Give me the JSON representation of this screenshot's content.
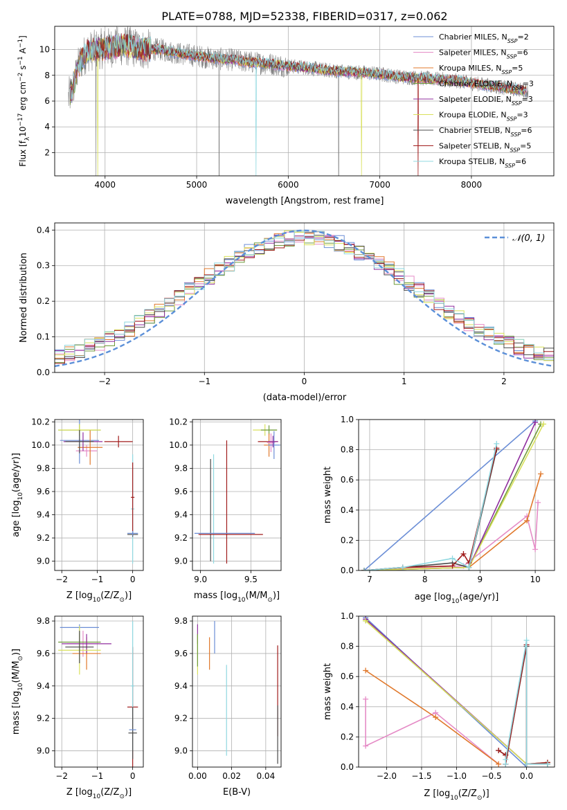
{
  "figure": {
    "title": "PLATE=0788, MJD=52338, FIBERID=0317, z=0.062",
    "model_colors": {
      "Chabrier MILES": "#6b8ed6",
      "Salpeter MILES": "#e58bc6",
      "Kroupa MILES": "#e0782b",
      "Chabrier ELODIE": "#6e9a3a",
      "Salpeter ELODIE": "#8f2d9e",
      "Kroupa ELODIE": "#d8e05a",
      "Chabrier STELIB": "#4a4a4a",
      "Salpeter STELIB": "#a01b1b",
      "Kroupa STELIB": "#8fd8e0"
    }
  },
  "chart_data": [
    {
      "id": "spectrum",
      "type": "line",
      "title": "PLATE=0788, MJD=52338, FIBERID=0317, z=0.062",
      "xlabel": "wavelength [Angstrom, rest frame]",
      "ylabel_parts": [
        "Flux [f",
        "λ",
        "10",
        "−17",
        " erg cm",
        "−2",
        " s",
        "−1",
        " A",
        "−1",
        "]"
      ],
      "xlim": [
        3450,
        8900
      ],
      "ylim": [
        0.2,
        11.8
      ],
      "xticks": [
        4000,
        5000,
        6000,
        7000,
        8000
      ],
      "yticks": [
        2,
        4,
        6,
        8,
        10
      ],
      "data_color": "#808080",
      "continuum_x": [
        3600,
        3650,
        3700,
        3750,
        3800,
        3900,
        4000,
        4100,
        4200,
        4300,
        4400,
        4600,
        4800,
        5000,
        5200,
        5400,
        5600,
        5800,
        6000,
        6200,
        6400,
        6600,
        6800,
        7000,
        7200,
        7400,
        7600,
        7800,
        8000,
        8200,
        8400,
        8600
      ],
      "continuum_y": [
        6.2,
        7.0,
        8.5,
        9.3,
        9.8,
        10.0,
        10.1,
        10.2,
        10.3,
        10.2,
        10.0,
        10.0,
        9.7,
        9.5,
        9.3,
        9.2,
        9.0,
        8.9,
        8.7,
        8.6,
        8.4,
        8.3,
        8.2,
        8.1,
        7.9,
        7.8,
        7.7,
        7.6,
        7.4,
        7.2,
        7.0,
        6.8
      ],
      "model_names": [
        "Chabrier MILES",
        "Salpeter MILES",
        "Kroupa MILES",
        "Chabrier ELODIE",
        "Salpeter ELODIE",
        "Kroupa ELODIE",
        "Chabrier STELIB",
        "Salpeter STELIB",
        "Kroupa STELIB"
      ],
      "model_nssp": [
        "2",
        "6",
        "5",
        "3",
        "3",
        "3",
        "6",
        "5",
        "6"
      ]
    },
    {
      "id": "residuals",
      "type": "line",
      "xlabel": "(data-model)/error",
      "ylabel": "Normed distribution",
      "xlim": [
        -2.5,
        2.5
      ],
      "ylim": [
        0,
        0.42
      ],
      "xticks": [
        -2,
        -1,
        0,
        1,
        2
      ],
      "xtick_labels": [
        "−2",
        "−1",
        "0",
        "1",
        "2"
      ],
      "yticks": [
        0.0,
        0.1,
        0.2,
        0.3,
        0.4
      ],
      "ytick_labels": [
        "0.0",
        "0.1",
        "0.2",
        "0.3",
        "0.4"
      ],
      "bin_width": 0.1,
      "legend_label": "𝒩(0, 1)",
      "gaussian_color": "#5b8fd8"
    },
    {
      "id": "age-vs-Z",
      "type": "scatter",
      "xlabel_parts": [
        "Z [log",
        "10",
        "(Z/Z",
        "⊙",
        ")]"
      ],
      "ylabel_parts": [
        "age  [log",
        "10",
        "(age/yr)]"
      ],
      "xlim": [
        -2.2,
        0.3
      ],
      "ylim": [
        8.92,
        10.22
      ],
      "xticks": [
        -2,
        -1,
        0
      ],
      "xtick_labels": [
        "−2",
        "−1",
        "0"
      ],
      "yticks": [
        9.0,
        9.2,
        9.4,
        9.6,
        9.8,
        10.0,
        10.2
      ],
      "ytick_labels": [
        "9.0",
        "9.2",
        "9.4",
        "9.6",
        "9.8",
        "10.0",
        "10.2"
      ],
      "points": [
        {
          "model": "Chabrier MILES",
          "x": -1.5,
          "xerr": 0.55,
          "y": 10.04,
          "yerr": 0.2
        },
        {
          "model": "Salpeter MILES",
          "x": -1.3,
          "xerr": 0.3,
          "y": 9.95,
          "yerr": 0.05
        },
        {
          "model": "Kroupa MILES",
          "x": -1.2,
          "xerr": 0.35,
          "y": 9.98,
          "yerr": 0.15
        },
        {
          "model": "Chabrier ELODIE",
          "x": -1.5,
          "xerr": 0.6,
          "y": 10.13,
          "yerr": 0.05
        },
        {
          "model": "Salpeter ELODIE",
          "x": -1.4,
          "xerr": 0.55,
          "y": 10.03,
          "yerr": 0.08
        },
        {
          "model": "Kroupa ELODIE",
          "x": -1.5,
          "xerr": 0.6,
          "y": 10.13,
          "yerr": 0.05
        },
        {
          "model": "Chabrier STELIB",
          "x": -1.5,
          "xerr": 0.4,
          "y": 10.03,
          "yerr": 0.1
        },
        {
          "model": "Salpeter STELIB",
          "x": -0.4,
          "xerr": 0.4,
          "y": 10.03,
          "yerr": 0.05
        },
        {
          "model": "Kroupa STELIB",
          "x": 0.0,
          "xerr": 0.05,
          "y": 9.45,
          "yerr": 0.47
        },
        {
          "model": "Chabrier STELIB",
          "x": 0.0,
          "xerr": 0.15,
          "y": 9.23,
          "yerr": 0.02
        },
        {
          "model": "Salpeter STELIB",
          "x": 0.0,
          "xerr": 0.05,
          "y": 9.55,
          "yerr": 0.3
        },
        {
          "model": "Chabrier MILES",
          "x": 0.0,
          "xerr": 0.15,
          "y": 9.24,
          "yerr": 0.02
        }
      ]
    },
    {
      "id": "age-vs-mass",
      "type": "scatter",
      "xlabel_parts": [
        "mass [log",
        "10",
        "(M/M",
        "⊙",
        ")]"
      ],
      "ylabel_parts": [],
      "xlim": [
        8.92,
        9.8
      ],
      "ylim": [
        8.92,
        10.22
      ],
      "xticks": [
        9.0,
        9.5
      ],
      "xtick_labels": [
        "9.0",
        "9.5"
      ],
      "yticks": [
        9.0,
        9.2,
        9.4,
        9.6,
        9.8,
        10.0,
        10.2
      ],
      "ytick_labels": [
        "9.0",
        "9.2",
        "9.4",
        "9.6",
        "9.8",
        "10.0",
        "10.2"
      ],
      "points": [
        {
          "model": "Chabrier STELIB",
          "x": 9.1,
          "xerr": 0.0,
          "y": 9.44,
          "yerr": 0.44
        },
        {
          "model": "Kroupa STELIB",
          "x": 9.13,
          "xerr": 0.0,
          "y": 9.45,
          "yerr": 0.47
        },
        {
          "model": "Salpeter STELIB",
          "x": 9.26,
          "xerr": 0.0,
          "y": 9.51,
          "yerr": 0.53
        },
        {
          "model": "Chabrier MILES",
          "x": 9.24,
          "xerr": 0.3,
          "y": 9.24,
          "yerr": 0.0
        },
        {
          "model": "Salpeter STELIB",
          "x": 9.3,
          "xerr": 0.32,
          "y": 9.23,
          "yerr": 0.0
        },
        {
          "model": "Kroupa ELODIE",
          "x": 9.64,
          "xerr": 0.12,
          "y": 10.13,
          "yerr": 0.05
        },
        {
          "model": "Chabrier ELODIE",
          "x": 9.68,
          "xerr": 0.08,
          "y": 10.13,
          "yerr": 0.04
        },
        {
          "model": "Kroupa MILES",
          "x": 9.68,
          "xerr": 0.05,
          "y": 10.0,
          "yerr": 0.1
        },
        {
          "model": "Salpeter MILES",
          "x": 9.7,
          "xerr": 0.04,
          "y": 10.02,
          "yerr": 0.08
        },
        {
          "model": "Chabrier MILES",
          "x": 9.73,
          "xerr": 0.06,
          "y": 10.0,
          "yerr": 0.12
        },
        {
          "model": "Salpeter STELIB",
          "x": 9.67,
          "xerr": 0.1,
          "y": 10.03,
          "yerr": 0.0
        },
        {
          "model": "Salpeter ELODIE",
          "x": 9.72,
          "xerr": 0.05,
          "y": 10.03,
          "yerr": 0.05
        }
      ]
    },
    {
      "id": "mass-weight-vs-age",
      "type": "line",
      "xlabel_parts": [
        "age  [log",
        "10",
        "(age/yr)]"
      ],
      "ylabel": "mass weight",
      "xlim": [
        6.8,
        10.35
      ],
      "ylim": [
        0,
        1
      ],
      "xticks": [
        7,
        8,
        9,
        10
      ],
      "xtick_labels": [
        "7",
        "8",
        "9",
        "10"
      ],
      "yticks": [
        0.0,
        0.2,
        0.4,
        0.6,
        0.8,
        1.0
      ],
      "ytick_labels": [
        "0.0",
        "0.2",
        "0.4",
        "0.6",
        "0.8",
        "1.0"
      ],
      "series": [
        {
          "model": "Chabrier MILES",
          "x": [
            6.9,
            10.0
          ],
          "y": [
            0.0,
            0.99
          ]
        },
        {
          "model": "Salpeter MILES",
          "x": [
            6.9,
            7.6,
            8.7,
            9.85,
            10.0,
            10.05
          ],
          "y": [
            0.0,
            0.02,
            0.03,
            0.36,
            0.14,
            0.45
          ]
        },
        {
          "model": "Kroupa MILES",
          "x": [
            6.9,
            7.6,
            8.8,
            9.85,
            10.1
          ],
          "y": [
            0.0,
            0.01,
            0.02,
            0.33,
            0.64
          ]
        },
        {
          "model": "Chabrier ELODIE",
          "x": [
            6.9,
            8.8,
            10.1
          ],
          "y": [
            0.0,
            0.02,
            0.97
          ]
        },
        {
          "model": "Salpeter ELODIE",
          "x": [
            6.9,
            8.8,
            10.0
          ],
          "y": [
            0.0,
            0.02,
            0.98
          ]
        },
        {
          "model": "Kroupa ELODIE",
          "x": [
            6.9,
            8.8,
            10.15
          ],
          "y": [
            0.0,
            0.02,
            0.97
          ]
        },
        {
          "model": "Chabrier STELIB",
          "x": [
            6.9,
            7.6,
            8.5,
            8.8,
            9.3
          ],
          "y": [
            0.0,
            0.02,
            0.05,
            0.02,
            0.8
          ]
        },
        {
          "model": "Salpeter STELIB",
          "x": [
            6.9,
            7.6,
            8.5,
            8.7,
            8.8,
            9.3
          ],
          "y": [
            0.0,
            0.02,
            0.03,
            0.11,
            0.05,
            0.81
          ]
        },
        {
          "model": "Kroupa STELIB",
          "x": [
            6.9,
            7.6,
            8.5,
            8.8,
            9.3
          ],
          "y": [
            0.0,
            0.02,
            0.08,
            0.02,
            0.84
          ]
        }
      ]
    },
    {
      "id": "mass-vs-Z",
      "type": "scatter",
      "xlabel_parts": [
        "Z [log",
        "10",
        "(Z/Z",
        "⊙",
        ")]"
      ],
      "ylabel_parts": [
        "mass [log",
        "10",
        "(M/M",
        "⊙",
        ")]"
      ],
      "xlim": [
        -2.2,
        0.3
      ],
      "ylim": [
        8.9,
        9.83
      ],
      "xticks": [
        -2,
        -1,
        0
      ],
      "xtick_labels": [
        "−2",
        "−1",
        "0"
      ],
      "yticks": [
        9.0,
        9.2,
        9.4,
        9.6,
        9.8
      ],
      "ytick_labels": [
        "9.0",
        "9.2",
        "9.4",
        "9.6",
        "9.8"
      ],
      "points": [
        {
          "model": "Chabrier MILES",
          "x": -1.5,
          "xerr": 0.55,
          "y": 9.76,
          "yerr": 0.02
        },
        {
          "model": "Salpeter MILES",
          "x": -1.4,
          "xerr": 0.45,
          "y": 9.66,
          "yerr": 0.08
        },
        {
          "model": "Kroupa MILES",
          "x": -1.3,
          "xerr": 0.4,
          "y": 9.6,
          "yerr": 0.1
        },
        {
          "model": "Chabrier ELODIE",
          "x": -1.5,
          "xerr": 0.6,
          "y": 9.67,
          "yerr": 0.06
        },
        {
          "model": "Salpeter ELODIE",
          "x": -1.3,
          "xerr": 0.7,
          "y": 9.66,
          "yerr": 0.06
        },
        {
          "model": "Kroupa ELODIE",
          "x": -1.5,
          "xerr": 0.6,
          "y": 9.62,
          "yerr": 0.15
        },
        {
          "model": "Chabrier STELIB",
          "x": -1.5,
          "xerr": 0.4,
          "y": 9.64,
          "yerr": 0.1
        },
        {
          "model": "Salpeter STELIB",
          "x": 0.0,
          "xerr": 0.15,
          "y": 9.27,
          "yerr": 0.37
        },
        {
          "model": "Kroupa STELIB",
          "x": 0.0,
          "xerr": 0.05,
          "y": 9.4,
          "yerr": 0.4
        },
        {
          "model": "Chabrier STELIB",
          "x": 0.0,
          "xerr": 0.12,
          "y": 9.11,
          "yerr": 0.16
        },
        {
          "model": "Chabrier MILES",
          "x": 0.0,
          "xerr": 0.1,
          "y": 9.13,
          "yerr": 0.0
        }
      ]
    },
    {
      "id": "mass-vs-ebv",
      "type": "scatter",
      "xlabel": "E(B-V)",
      "ylabel_parts": [],
      "xlim": [
        -0.003,
        0.049
      ],
      "ylim": [
        8.9,
        9.83
      ],
      "xticks": [
        0.0,
        0.02,
        0.04
      ],
      "xtick_labels": [
        "0.00",
        "0.02",
        "0.04"
      ],
      "yticks": [
        9.0,
        9.2,
        9.4,
        9.6,
        9.8
      ],
      "ytick_labels": [
        "9.0",
        "9.2",
        "9.4",
        "9.6",
        "9.8"
      ],
      "points": [
        {
          "model": "Salpeter ELODIE",
          "x": 0.0,
          "xerr": 0.0,
          "y": 9.72,
          "yerr": 0.06
        },
        {
          "model": "Kroupa ELODIE",
          "x": 0.0,
          "xerr": 0.0,
          "y": 9.59,
          "yerr": 0.12
        },
        {
          "model": "Chabrier ELODIE",
          "x": 0.0,
          "xerr": 0.0,
          "y": 9.62,
          "yerr": 0.1
        },
        {
          "model": "Kroupa MILES",
          "x": 0.007,
          "xerr": 0.0,
          "y": 9.6,
          "yerr": 0.1
        },
        {
          "model": "Chabrier MILES",
          "x": 0.01,
          "xerr": 0.0,
          "y": 9.7,
          "yerr": 0.1
        },
        {
          "model": "Kroupa STELIB",
          "x": 0.017,
          "xerr": 0.0,
          "y": 9.25,
          "yerr": 0.28
        },
        {
          "model": "Salpeter STELIB",
          "x": 0.047,
          "xerr": 0.0,
          "y": 9.37,
          "yerr": 0.28
        },
        {
          "model": "Chabrier STELIB",
          "x": 0.047,
          "xerr": 0.0,
          "y": 9.1,
          "yerr": 0.18
        }
      ]
    },
    {
      "id": "mass-weight-vs-Z",
      "type": "line",
      "xlabel_parts": [
        "Z [log",
        "10",
        "(Z/Z",
        "⊙",
        ")]"
      ],
      "ylabel": "mass weight",
      "xlim": [
        -2.4,
        0.4
      ],
      "ylim": [
        0,
        1
      ],
      "xticks": [
        -2.0,
        -1.5,
        -1.0,
        -0.5,
        0.0
      ],
      "xtick_labels": [
        "−2.0",
        "−1.5",
        "−1.0",
        "−0.5",
        "0.0"
      ],
      "yticks": [
        0.0,
        0.2,
        0.4,
        0.6,
        0.8,
        1.0
      ],
      "ytick_labels": [
        "0.0",
        "0.2",
        "0.4",
        "0.6",
        "0.8",
        "1.0"
      ],
      "series": [
        {
          "model": "Chabrier MILES",
          "x": [
            -2.3,
            0.0
          ],
          "y": [
            0.99,
            0.0
          ]
        },
        {
          "model": "Salpeter MILES",
          "x": [
            -2.3,
            -2.3,
            -1.3,
            -0.4
          ],
          "y": [
            0.45,
            0.14,
            0.36,
            0.02
          ]
        },
        {
          "model": "Kroupa MILES",
          "x": [
            -2.3,
            -1.3,
            -0.4
          ],
          "y": [
            0.64,
            0.33,
            0.02
          ]
        },
        {
          "model": "Chabrier ELODIE",
          "x": [
            -2.3,
            0.0,
            0.3
          ],
          "y": [
            0.97,
            0.02,
            0.02
          ]
        },
        {
          "model": "Salpeter ELODIE",
          "x": [
            -2.3,
            0.0,
            0.3
          ],
          "y": [
            0.98,
            0.02,
            0.03
          ]
        },
        {
          "model": "Kroupa ELODIE",
          "x": [
            -2.3,
            0.0,
            0.3
          ],
          "y": [
            0.97,
            0.02,
            0.03
          ]
        },
        {
          "model": "Chabrier STELIB",
          "x": [
            -0.4,
            -0.3,
            -0.3,
            0.0,
            0.0,
            0.3
          ],
          "y": [
            0.11,
            0.08,
            0.02,
            0.8,
            0.02,
            0.02
          ]
        },
        {
          "model": "Salpeter STELIB",
          "x": [
            -0.4,
            -0.3,
            -0.3,
            0.0,
            0.0,
            0.3
          ],
          "y": [
            0.11,
            0.08,
            0.02,
            0.81,
            0.02,
            0.03
          ]
        },
        {
          "model": "Kroupa STELIB",
          "x": [
            -0.3,
            -0.3,
            0.0,
            0.0,
            0.3
          ],
          "y": [
            0.02,
            0.05,
            0.84,
            0.02,
            0.02
          ]
        }
      ]
    }
  ]
}
